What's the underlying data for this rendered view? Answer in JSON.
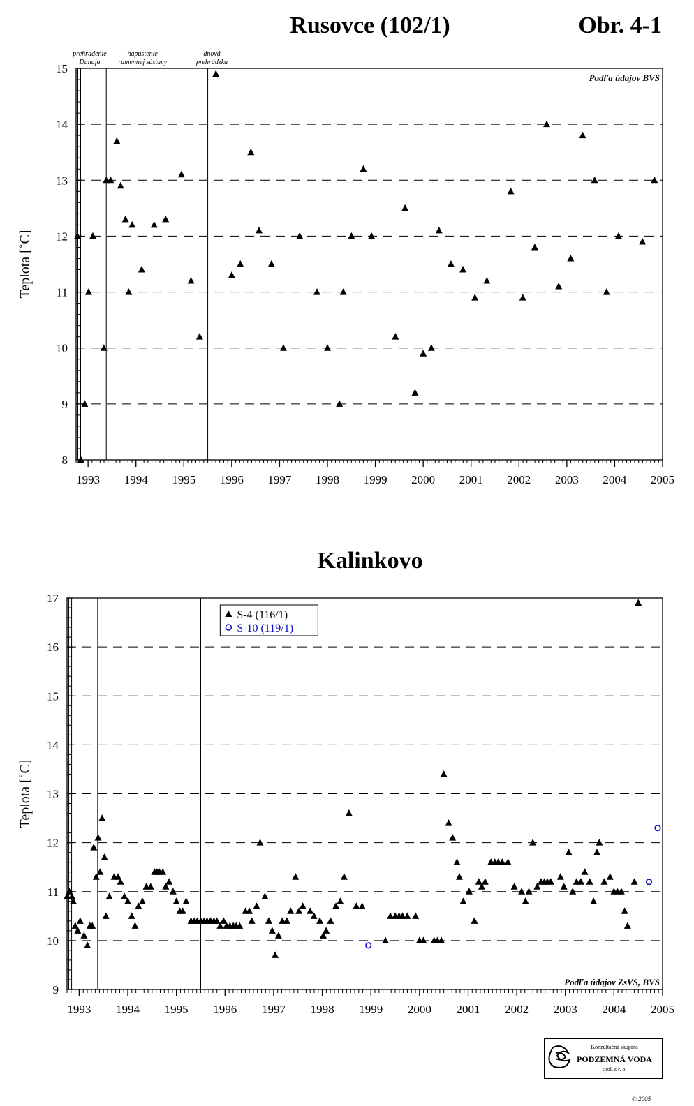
{
  "page": {
    "figure_label": "Obr. 4-1",
    "copyright": "© 2005",
    "logo": {
      "line1": "Konzultačná skupina",
      "line2": "PODZEMNÁ VODA",
      "line3": "spol. s r. o."
    }
  },
  "chart_data": [
    {
      "type": "scatter",
      "title": "Rusovce (102/1)",
      "ylabel": "Teplota [˚C]",
      "xlabel": "",
      "xlim": [
        1992.75,
        2005
      ],
      "ylim": [
        8,
        15
      ],
      "x_ticks": [
        "1993",
        "1994",
        "1995",
        "1996",
        "1997",
        "1998",
        "1999",
        "2000",
        "2001",
        "2002",
        "2003",
        "2004",
        "2005"
      ],
      "y_ticks": [
        "8",
        "9",
        "10",
        "11",
        "12",
        "13",
        "14",
        "15"
      ],
      "grid": "horizontal dashed",
      "source_note": "Podľa údajov BVS",
      "events": [
        {
          "x": 1992.83,
          "lines": [
            "prehradenie",
            "Dunaja"
          ]
        },
        {
          "x": 1993.38,
          "lines": [
            "napustenie",
            "ramennej sústavy"
          ]
        },
        {
          "x": 1995.5,
          "lines": [
            "dnová",
            "prehrádzka"
          ]
        }
      ],
      "series": [
        {
          "marker": "triangle",
          "color": "#000000",
          "points": [
            [
              1992.78,
              12.0
            ],
            [
              1992.85,
              8.0
            ],
            [
              1992.93,
              9.0
            ],
            [
              1993.01,
              11.0
            ],
            [
              1993.1,
              12.0
            ],
            [
              1993.33,
              10.0
            ],
            [
              1993.38,
              13.0
            ],
            [
              1993.47,
              13.0
            ],
            [
              1993.6,
              13.7
            ],
            [
              1993.68,
              12.9
            ],
            [
              1993.78,
              12.3
            ],
            [
              1993.85,
              11.0
            ],
            [
              1993.92,
              12.2
            ],
            [
              1994.12,
              11.4
            ],
            [
              1994.38,
              12.2
            ],
            [
              1994.62,
              12.3
            ],
            [
              1994.95,
              13.1
            ],
            [
              1995.15,
              11.2
            ],
            [
              1995.33,
              10.2
            ],
            [
              1995.67,
              14.9
            ],
            [
              1996.0,
              11.3
            ],
            [
              1996.18,
              11.5
            ],
            [
              1996.4,
              13.5
            ],
            [
              1996.57,
              12.1
            ],
            [
              1996.83,
              11.5
            ],
            [
              1997.08,
              10.0
            ],
            [
              1997.42,
              12.0
            ],
            [
              1997.78,
              11.0
            ],
            [
              1998.0,
              10.0
            ],
            [
              1998.25,
              9.0
            ],
            [
              1998.33,
              11.0
            ],
            [
              1998.5,
              12.0
            ],
            [
              1998.75,
              13.2
            ],
            [
              1998.92,
              12.0
            ],
            [
              1999.42,
              10.2
            ],
            [
              1999.62,
              12.5
            ],
            [
              1999.83,
              9.2
            ],
            [
              2000.0,
              9.9
            ],
            [
              2000.17,
              10.0
            ],
            [
              2000.33,
              12.1
            ],
            [
              2000.58,
              11.5
            ],
            [
              2000.83,
              11.4
            ],
            [
              2001.08,
              10.9
            ],
            [
              2001.33,
              11.2
            ],
            [
              2001.83,
              12.8
            ],
            [
              2002.08,
              10.9
            ],
            [
              2002.33,
              11.8
            ],
            [
              2002.58,
              14.0
            ],
            [
              2002.83,
              11.1
            ],
            [
              2003.08,
              11.6
            ],
            [
              2003.33,
              13.8
            ],
            [
              2003.58,
              13.0
            ],
            [
              2003.83,
              11.0
            ],
            [
              2004.08,
              12.0
            ],
            [
              2004.58,
              11.9
            ],
            [
              2004.83,
              13.0
            ]
          ]
        }
      ]
    },
    {
      "type": "scatter",
      "title": "Kalinkovo",
      "ylabel": "Teplota [˚C]",
      "xlabel": "",
      "xlim": [
        1992.75,
        2005
      ],
      "ylim": [
        9,
        17
      ],
      "x_ticks": [
        "1993",
        "1994",
        "1995",
        "1996",
        "1997",
        "1998",
        "1999",
        "2000",
        "2001",
        "2002",
        "2003",
        "2004",
        "2005"
      ],
      "y_ticks": [
        "9",
        "10",
        "11",
        "12",
        "13",
        "14",
        "15",
        "16",
        "17"
      ],
      "grid": "horizontal dashed",
      "legend_position": "top-left",
      "source_note": "Podľa údajov ZsVS, BVS",
      "events": [
        {
          "x": 1992.83,
          "lines": []
        },
        {
          "x": 1993.38,
          "lines": []
        },
        {
          "x": 1995.5,
          "lines": []
        }
      ],
      "series": [
        {
          "name": "S-4 (116/1)",
          "marker": "triangle",
          "color": "#000000",
          "points": [
            [
              1992.75,
              10.9
            ],
            [
              1992.8,
              11.0
            ],
            [
              1992.85,
              10.9
            ],
            [
              1992.88,
              10.8
            ],
            [
              1992.92,
              10.3
            ],
            [
              1992.97,
              10.2
            ],
            [
              1993.02,
              10.4
            ],
            [
              1993.1,
              10.1
            ],
            [
              1993.17,
              9.9
            ],
            [
              1993.22,
              10.3
            ],
            [
              1993.27,
              10.3
            ],
            [
              1993.3,
              11.9
            ],
            [
              1993.35,
              11.3
            ],
            [
              1993.39,
              12.1
            ],
            [
              1993.43,
              11.4
            ],
            [
              1993.47,
              12.5
            ],
            [
              1993.52,
              11.7
            ],
            [
              1993.55,
              10.5
            ],
            [
              1993.62,
              10.9
            ],
            [
              1993.72,
              11.3
            ],
            [
              1993.8,
              11.3
            ],
            [
              1993.85,
              11.2
            ],
            [
              1993.93,
              10.9
            ],
            [
              2000.0,
              10.0
            ],
            [
              1994.0,
              10.8
            ],
            [
              1994.08,
              10.5
            ],
            [
              1994.15,
              10.3
            ],
            [
              1994.22,
              10.7
            ],
            [
              1994.3,
              10.8
            ],
            [
              1994.38,
              11.1
            ],
            [
              1994.47,
              11.1
            ],
            [
              1994.55,
              11.4
            ],
            [
              1994.6,
              11.4
            ],
            [
              1994.65,
              11.4
            ],
            [
              1994.72,
              11.4
            ],
            [
              1994.78,
              11.1
            ],
            [
              1994.85,
              11.2
            ],
            [
              1994.93,
              11.0
            ],
            [
              1995.0,
              10.8
            ],
            [
              1995.07,
              10.6
            ],
            [
              1995.13,
              10.6
            ],
            [
              1995.2,
              10.8
            ],
            [
              1995.3,
              10.4
            ],
            [
              1995.37,
              10.4
            ],
            [
              1995.43,
              10.4
            ],
            [
              1995.5,
              10.4
            ],
            [
              1995.57,
              10.4
            ],
            [
              1995.63,
              10.4
            ],
            [
              1995.7,
              10.4
            ],
            [
              1995.77,
              10.4
            ],
            [
              1995.83,
              10.4
            ],
            [
              1995.9,
              10.3
            ],
            [
              1995.97,
              10.4
            ],
            [
              1996.03,
              10.3
            ],
            [
              1996.1,
              10.3
            ],
            [
              1996.17,
              10.3
            ],
            [
              1996.23,
              10.3
            ],
            [
              1996.3,
              10.3
            ],
            [
              1996.42,
              10.6
            ],
            [
              1996.5,
              10.6
            ],
            [
              1996.55,
              10.4
            ],
            [
              1996.65,
              10.7
            ],
            [
              1996.72,
              12.0
            ],
            [
              1996.82,
              10.9
            ],
            [
              1996.9,
              10.4
            ],
            [
              1996.97,
              10.2
            ],
            [
              1997.03,
              9.7
            ],
            [
              1997.1,
              10.1
            ],
            [
              1997.18,
              10.4
            ],
            [
              1997.27,
              10.4
            ],
            [
              1997.35,
              10.6
            ],
            [
              1997.45,
              11.3
            ],
            [
              1997.52,
              10.6
            ],
            [
              1997.6,
              10.7
            ],
            [
              1997.75,
              10.6
            ],
            [
              1997.83,
              10.5
            ],
            [
              1997.95,
              10.4
            ],
            [
              1998.02,
              10.1
            ],
            [
              1998.08,
              10.2
            ],
            [
              1998.17,
              10.4
            ],
            [
              1998.28,
              10.7
            ],
            [
              1998.37,
              10.8
            ],
            [
              1998.45,
              11.3
            ],
            [
              1998.55,
              12.6
            ],
            [
              1998.7,
              10.7
            ],
            [
              1998.82,
              10.7
            ],
            [
              1999.3,
              10.0
            ],
            [
              1999.4,
              10.5
            ],
            [
              1999.5,
              10.5
            ],
            [
              1999.58,
              10.5
            ],
            [
              1999.65,
              10.5
            ],
            [
              1999.75,
              10.5
            ],
            [
              1999.92,
              10.5
            ],
            [
              2000.08,
              10.0
            ],
            [
              2000.3,
              10.0
            ],
            [
              2000.37,
              10.0
            ],
            [
              2000.45,
              10.0
            ],
            [
              2000.5,
              13.4
            ],
            [
              2000.6,
              12.4
            ],
            [
              2000.68,
              12.1
            ],
            [
              2000.77,
              11.6
            ],
            [
              2000.82,
              11.3
            ],
            [
              2000.9,
              10.8
            ],
            [
              2001.02,
              11.0
            ],
            [
              2001.13,
              10.4
            ],
            [
              2001.22,
              11.2
            ],
            [
              2001.28,
              11.1
            ],
            [
              2001.35,
              11.2
            ],
            [
              2001.47,
              11.6
            ],
            [
              2001.55,
              11.6
            ],
            [
              2001.62,
              11.6
            ],
            [
              2001.7,
              11.6
            ],
            [
              2001.82,
              11.6
            ],
            [
              2001.95,
              11.1
            ],
            [
              2002.1,
              11.0
            ],
            [
              2002.18,
              10.8
            ],
            [
              2002.25,
              11.0
            ],
            [
              2002.33,
              12.0
            ],
            [
              2002.42,
              11.1
            ],
            [
              2002.5,
              11.2
            ],
            [
              2002.57,
              11.2
            ],
            [
              2002.63,
              11.2
            ],
            [
              2002.7,
              11.2
            ],
            [
              2002.9,
              11.3
            ],
            [
              2002.97,
              11.1
            ],
            [
              2003.07,
              11.8
            ],
            [
              2003.15,
              11.0
            ],
            [
              2003.23,
              11.2
            ],
            [
              2003.32,
              11.2
            ],
            [
              2003.4,
              11.4
            ],
            [
              2003.5,
              11.2
            ],
            [
              2003.58,
              10.8
            ],
            [
              2003.65,
              11.8
            ],
            [
              2003.7,
              12.0
            ],
            [
              2003.8,
              11.2
            ],
            [
              2003.92,
              11.3
            ],
            [
              2004.0,
              11.0
            ],
            [
              2004.07,
              11.0
            ],
            [
              2004.15,
              11.0
            ],
            [
              2004.22,
              10.6
            ],
            [
              2004.28,
              10.3
            ],
            [
              2004.42,
              11.2
            ],
            [
              2004.5,
              16.9
            ]
          ]
        },
        {
          "name": "S-10 (119/1)",
          "marker": "circle-open",
          "color": "#1010c0",
          "points": [
            [
              1998.95,
              9.9
            ],
            [
              2004.72,
              11.2
            ],
            [
              2004.9,
              12.3
            ]
          ]
        }
      ]
    }
  ]
}
